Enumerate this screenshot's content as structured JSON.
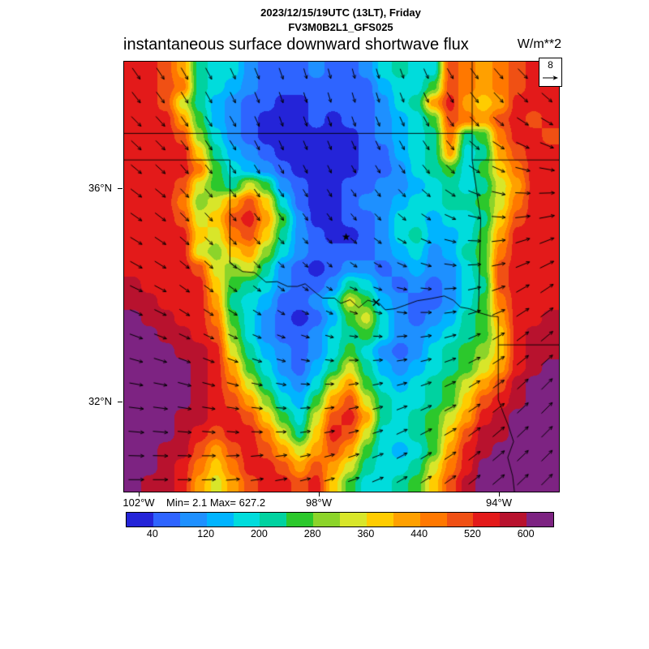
{
  "header": {
    "datetime_line": "2023/12/15/19UTC (13LT), Friday",
    "model_line": "FV3M0B2L1_GFS025",
    "title": "instantaneous surface downward shortwave flux",
    "units": "W/m**2"
  },
  "axes": {
    "lat_ticks": [
      {
        "label": "36°N",
        "value": 36
      },
      {
        "label": "32°N",
        "value": 32
      }
    ],
    "lon_ticks": [
      {
        "label": "102°W",
        "value": 102
      },
      {
        "label": "98°W",
        "value": 98
      },
      {
        "label": "94°W",
        "value": 94
      }
    ],
    "lon_left_w": 102.35,
    "lon_right_w": 92.6,
    "lat_top_n": 38.35,
    "lat_bottom_n": 30.25
  },
  "stats": {
    "min_max": "Min= 2.1 Max= 627.2"
  },
  "reference_vector": {
    "label": "8",
    "speed": 8
  },
  "colorbar": {
    "tick_labels": [
      "40",
      "120",
      "200",
      "280",
      "360",
      "440",
      "520",
      "600"
    ],
    "bin_edges": [
      0,
      40,
      80,
      120,
      160,
      200,
      240,
      280,
      320,
      360,
      400,
      440,
      480,
      520,
      560,
      600,
      640
    ],
    "colors": [
      "#2424d8",
      "#2e64ff",
      "#1e90ff",
      "#00b4ff",
      "#00dcdc",
      "#00d2a0",
      "#2cc82c",
      "#8cd42a",
      "#d8e62a",
      "#ffcc00",
      "#ffa000",
      "#ff7800",
      "#f05014",
      "#e31a1a",
      "#b8122e",
      "#7d2382"
    ]
  },
  "chart_data": {
    "type": "heatmap",
    "title": "instantaneous surface downward shortwave flux",
    "units": "W/m**2",
    "valid_time": "2023/12/15/19UTC (13LT), Friday",
    "model": "FV3M0B2L1_GFS025",
    "min": 2.1,
    "max": 627.2,
    "lon_range_w": [
      102.35,
      92.6
    ],
    "lat_range_n": [
      30.25,
      38.35
    ],
    "grid_note": "flux_bin_index_grid is a 26x26 coarse grid of colorbar bin indices; bin i spans [bin_edges[i], bin_edges[i+1]) W/m**2",
    "flux_bin_index_grid": [
      [
        13,
        13,
        12,
        10,
        5,
        4,
        4,
        2,
        1,
        1,
        1,
        2,
        1,
        1,
        2,
        4,
        5,
        4,
        4,
        12,
        11,
        10,
        11,
        12,
        13,
        13
      ],
      [
        13,
        13,
        12,
        11,
        5,
        4,
        3,
        2,
        1,
        1,
        1,
        1,
        1,
        1,
        1,
        3,
        4,
        4,
        6,
        12,
        11,
        10,
        11,
        12,
        13,
        13
      ],
      [
        13,
        13,
        12,
        8,
        5,
        3,
        2,
        1,
        1,
        0,
        0,
        1,
        1,
        1,
        1,
        2,
        4,
        5,
        10,
        13,
        10,
        9,
        10,
        13,
        13,
        13
      ],
      [
        13,
        13,
        13,
        10,
        6,
        3,
        2,
        1,
        0,
        0,
        0,
        1,
        0,
        1,
        1,
        2,
        3,
        4,
        6,
        12,
        11,
        10,
        12,
        13,
        12,
        13
      ],
      [
        13,
        13,
        13,
        12,
        7,
        4,
        2,
        1,
        0,
        0,
        0,
        0,
        0,
        0,
        1,
        2,
        3,
        4,
        5,
        11,
        5,
        6,
        11,
        13,
        13,
        12
      ],
      [
        13,
        13,
        13,
        13,
        9,
        5,
        3,
        2,
        1,
        0,
        0,
        0,
        0,
        0,
        1,
        1,
        3,
        4,
        5,
        10,
        4,
        5,
        10,
        12,
        13,
        13
      ],
      [
        13,
        13,
        13,
        13,
        11,
        6,
        4,
        3,
        2,
        1,
        0,
        0,
        0,
        0,
        1,
        1,
        2,
        4,
        5,
        6,
        4,
        6,
        9,
        11,
        13,
        13
      ],
      [
        13,
        13,
        13,
        12,
        8,
        6,
        5,
        8,
        6,
        2,
        1,
        0,
        0,
        1,
        1,
        2,
        2,
        3,
        4,
        5,
        4,
        5,
        8,
        10,
        13,
        13
      ],
      [
        13,
        13,
        13,
        11,
        7,
        8,
        10,
        12,
        9,
        4,
        1,
        0,
        0,
        1,
        2,
        2,
        3,
        4,
        4,
        5,
        5,
        6,
        8,
        11,
        13,
        13
      ],
      [
        13,
        13,
        13,
        12,
        8,
        9,
        12,
        13,
        10,
        6,
        2,
        0,
        0,
        1,
        1,
        2,
        4,
        4,
        3,
        4,
        4,
        5,
        9,
        12,
        13,
        13
      ],
      [
        13,
        13,
        13,
        13,
        9,
        8,
        11,
        12,
        9,
        5,
        2,
        1,
        0,
        0,
        1,
        2,
        4,
        5,
        3,
        3,
        4,
        6,
        10,
        13,
        13,
        13
      ],
      [
        13,
        13,
        13,
        13,
        8,
        7,
        9,
        10,
        7,
        4,
        2,
        1,
        1,
        1,
        1,
        2,
        3,
        4,
        2,
        3,
        5,
        6,
        11,
        13,
        13,
        13
      ],
      [
        13,
        13,
        13,
        13,
        12,
        8,
        7,
        8,
        5,
        2,
        1,
        0,
        1,
        2,
        2,
        1,
        2,
        3,
        2,
        2,
        4,
        6,
        12,
        13,
        13,
        13
      ],
      [
        14,
        13,
        13,
        13,
        13,
        9,
        6,
        5,
        4,
        2,
        1,
        1,
        2,
        5,
        4,
        2,
        1,
        2,
        1,
        2,
        4,
        5,
        12,
        13,
        13,
        13
      ],
      [
        14,
        14,
        13,
        13,
        13,
        10,
        5,
        4,
        3,
        1,
        1,
        2,
        4,
        8,
        6,
        3,
        2,
        1,
        1,
        2,
        4,
        6,
        11,
        13,
        13,
        13
      ],
      [
        15,
        14,
        14,
        13,
        13,
        11,
        6,
        4,
        2,
        1,
        0,
        1,
        3,
        6,
        8,
        4,
        2,
        1,
        2,
        3,
        5,
        6,
        10,
        13,
        13,
        14
      ],
      [
        15,
        15,
        14,
        14,
        13,
        12,
        7,
        4,
        2,
        1,
        1,
        2,
        4,
        5,
        6,
        4,
        2,
        2,
        3,
        4,
        5,
        6,
        9,
        13,
        14,
        14
      ],
      [
        15,
        15,
        15,
        14,
        14,
        13,
        8,
        5,
        3,
        2,
        1,
        2,
        4,
        6,
        4,
        2,
        1,
        2,
        4,
        5,
        6,
        7,
        9,
        13,
        14,
        14
      ],
      [
        15,
        15,
        15,
        15,
        14,
        13,
        10,
        6,
        4,
        2,
        1,
        3,
        5,
        8,
        5,
        3,
        2,
        3,
        4,
        5,
        6,
        8,
        10,
        13,
        14,
        15
      ],
      [
        15,
        15,
        15,
        15,
        14,
        13,
        11,
        8,
        5,
        3,
        2,
        4,
        8,
        10,
        6,
        4,
        3,
        4,
        5,
        6,
        8,
        10,
        12,
        14,
        15,
        15
      ],
      [
        15,
        15,
        15,
        15,
        14,
        13,
        12,
        10,
        7,
        4,
        3,
        6,
        10,
        12,
        8,
        5,
        4,
        4,
        5,
        6,
        9,
        12,
        13,
        14,
        15,
        15
      ],
      [
        15,
        15,
        15,
        14,
        14,
        13,
        13,
        12,
        9,
        6,
        4,
        8,
        12,
        13,
        10,
        5,
        4,
        5,
        6,
        8,
        10,
        13,
        14,
        15,
        15,
        15
      ],
      [
        15,
        15,
        15,
        14,
        13,
        12,
        13,
        13,
        11,
        8,
        5,
        9,
        13,
        12,
        8,
        4,
        4,
        5,
        6,
        9,
        12,
        14,
        14,
        15,
        15,
        15
      ],
      [
        15,
        15,
        14,
        14,
        12,
        10,
        12,
        13,
        12,
        10,
        8,
        10,
        12,
        10,
        6,
        4,
        3,
        4,
        6,
        10,
        13,
        14,
        15,
        15,
        15,
        15
      ],
      [
        15,
        15,
        14,
        13,
        11,
        9,
        11,
        13,
        13,
        12,
        10,
        12,
        10,
        8,
        5,
        4,
        4,
        5,
        8,
        11,
        13,
        15,
        15,
        15,
        15,
        15
      ],
      [
        15,
        14,
        14,
        13,
        10,
        8,
        10,
        12,
        13,
        13,
        12,
        13,
        9,
        6,
        4,
        4,
        5,
        6,
        9,
        12,
        14,
        15,
        15,
        15,
        15,
        15
      ]
    ],
    "wind": {
      "reference_speed": 8,
      "angles_deg_ccw_from_east": [
        [
          -55,
          -60,
          -65,
          -70,
          -75,
          -75,
          -70,
          -60,
          -50,
          -45
        ],
        [
          -45,
          -55,
          -60,
          -70,
          -70,
          -70,
          -65,
          -55,
          -40,
          -30
        ],
        [
          -40,
          -50,
          -55,
          -60,
          -65,
          -60,
          -55,
          -45,
          -25,
          -10
        ],
        [
          -35,
          -45,
          -50,
          -55,
          -55,
          -50,
          -40,
          -25,
          -5,
          10
        ],
        [
          -30,
          -40,
          -45,
          -45,
          -45,
          -35,
          -25,
          -10,
          10,
          25
        ],
        [
          -25,
          -35,
          -35,
          -35,
          -30,
          -20,
          -10,
          5,
          20,
          35
        ],
        [
          -20,
          -25,
          -25,
          -20,
          -15,
          -5,
          5,
          15,
          30,
          40
        ],
        [
          -10,
          -15,
          -15,
          -10,
          0,
          10,
          15,
          25,
          35,
          45
        ],
        [
          -5,
          -5,
          -5,
          0,
          10,
          15,
          25,
          30,
          40,
          45
        ],
        [
          0,
          0,
          5,
          10,
          15,
          20,
          30,
          35,
          40,
          45
        ]
      ],
      "speeds": [
        [
          8,
          8,
          7,
          7,
          6,
          6,
          6,
          7,
          8,
          8
        ],
        [
          8,
          7,
          7,
          6,
          6,
          6,
          6,
          7,
          8,
          8
        ],
        [
          8,
          7,
          6,
          6,
          5,
          5,
          6,
          7,
          8,
          9
        ],
        [
          8,
          7,
          6,
          5,
          5,
          5,
          6,
          7,
          8,
          9
        ],
        [
          8,
          7,
          6,
          5,
          4,
          5,
          6,
          7,
          8,
          9
        ],
        [
          8,
          7,
          6,
          5,
          4,
          5,
          6,
          7,
          8,
          9
        ],
        [
          8,
          7,
          6,
          5,
          5,
          5,
          6,
          7,
          8,
          9
        ],
        [
          8,
          8,
          7,
          6,
          5,
          6,
          6,
          7,
          8,
          9
        ],
        [
          9,
          8,
          7,
          6,
          6,
          6,
          7,
          8,
          9,
          9
        ],
        [
          9,
          8,
          8,
          7,
          6,
          7,
          7,
          8,
          9,
          9
        ]
      ]
    },
    "markers": [
      {
        "type": "star",
        "lon_w": 97.42,
        "lat_n": 35.05
      },
      {
        "type": "cross",
        "lon_w": 96.75,
        "lat_n": 33.82
      }
    ]
  }
}
